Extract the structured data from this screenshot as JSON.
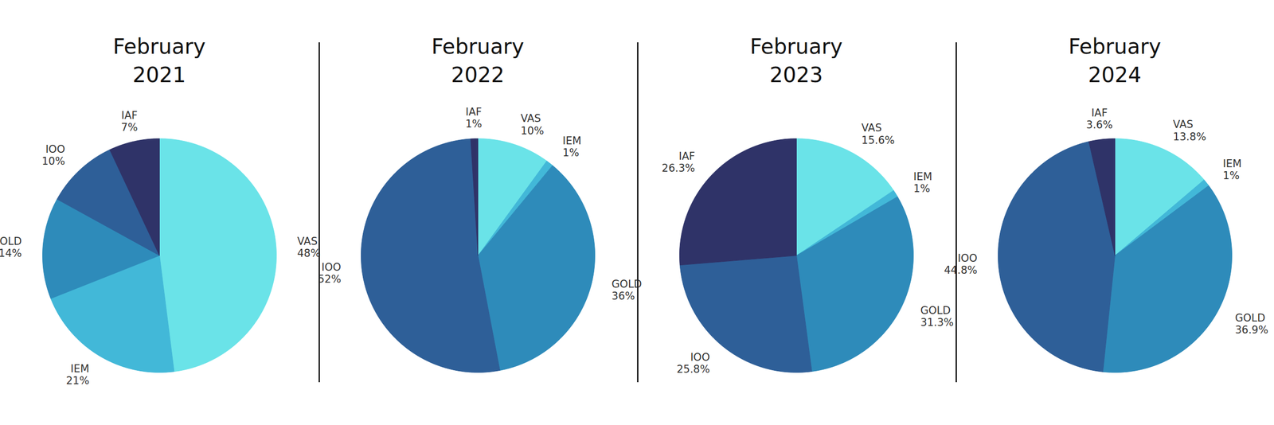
{
  "chart_data": [
    {
      "type": "pie",
      "title": "February 2021",
      "categories": [
        "VAS",
        "IEM",
        "GOLD",
        "IOO",
        "IAF"
      ],
      "values": [
        48,
        21,
        14,
        10,
        7
      ],
      "value_labels": [
        "48%",
        "21%",
        "14%",
        "10%",
        "7%"
      ],
      "colors": [
        "#6ae3e8",
        "#42b8d8",
        "#2e8bba",
        "#2e5f98",
        "#2f3368"
      ],
      "data_labels": true
    },
    {
      "type": "pie",
      "title": "February 2022",
      "categories": [
        "VAS",
        "IEM",
        "GOLD",
        "IOO",
        "IAF"
      ],
      "values": [
        10,
        1,
        36,
        52,
        1
      ],
      "value_labels": [
        "10%",
        "1%",
        "36%",
        "52%",
        "1%"
      ],
      "colors": [
        "#6ae3e8",
        "#42b8d8",
        "#2e8bba",
        "#2e5f98",
        "#2f3368"
      ],
      "data_labels": true
    },
    {
      "type": "pie",
      "title": "February 2023",
      "categories": [
        "VAS",
        "IEM",
        "GOLD",
        "IOO",
        "IAF"
      ],
      "values": [
        15.6,
        1,
        31.3,
        25.8,
        26.3
      ],
      "value_labels": [
        "15.6%",
        "1%",
        "31.3%",
        "25.8%",
        "26.3%"
      ],
      "colors": [
        "#6ae3e8",
        "#42b8d8",
        "#2e8bba",
        "#2e5f98",
        "#2f3368"
      ],
      "data_labels": true
    },
    {
      "type": "pie",
      "title": "February 2024",
      "categories": [
        "VAS",
        "IEM",
        "GOLD",
        "IOO",
        "IAF"
      ],
      "values": [
        13.8,
        1,
        36.9,
        44.8,
        3.6
      ],
      "value_labels": [
        "13.8%",
        "1%",
        "36.9%",
        "44.8%",
        "3.6%"
      ],
      "colors": [
        "#6ae3e8",
        "#42b8d8",
        "#2e8bba",
        "#2e5f98",
        "#2f3368"
      ],
      "data_labels": true
    }
  ]
}
